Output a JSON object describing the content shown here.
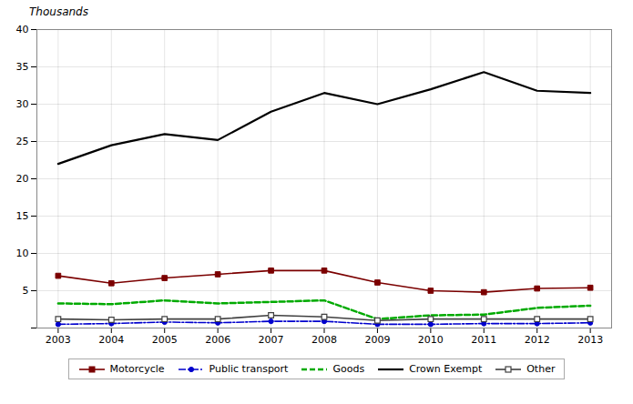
{
  "chart_data": {
    "type": "line",
    "ylabel": "Thousands",
    "x": [
      2003,
      2004,
      2005,
      2006,
      2007,
      2008,
      2009,
      2010,
      2011,
      2012,
      2013
    ],
    "series": [
      {
        "name": "Motorcycle",
        "color": "#7B0000",
        "marker": "square",
        "line_style": "solid",
        "values": [
          7.0,
          6.0,
          6.7,
          7.2,
          7.7,
          7.7,
          6.1,
          5.0,
          4.8,
          5.3,
          5.4
        ]
      },
      {
        "name": "Public transport",
        "color": "#0000CD",
        "marker": "circle",
        "line_style": "dashdot",
        "values": [
          0.5,
          0.6,
          0.8,
          0.7,
          0.9,
          0.9,
          0.5,
          0.5,
          0.6,
          0.6,
          0.7
        ]
      },
      {
        "name": "Goods",
        "color": "#00AA00",
        "marker": "none",
        "line_style": "dashed",
        "values": [
          3.3,
          3.2,
          3.7,
          3.3,
          3.5,
          3.7,
          1.2,
          1.7,
          1.8,
          2.7,
          3.0
        ]
      },
      {
        "name": "Crown Exempt",
        "color": "#000000",
        "marker": "none",
        "line_style": "solid",
        "values": [
          22.0,
          24.5,
          26.0,
          25.2,
          29.0,
          31.5,
          30.0,
          32.0,
          34.3,
          31.8,
          31.5
        ]
      },
      {
        "name": "Other",
        "color": "#404040",
        "marker": "square-open",
        "line_style": "solid",
        "values": [
          1.2,
          1.1,
          1.2,
          1.2,
          1.7,
          1.5,
          1.0,
          1.2,
          1.2,
          1.2,
          1.2
        ]
      }
    ],
    "xlim": [
      2002.6,
      2013.4
    ],
    "xticks": [
      2003,
      2004,
      2005,
      2006,
      2007,
      2008,
      2009,
      2010,
      2011,
      2012,
      2013
    ],
    "ylim": [
      0,
      40
    ],
    "yticks": [
      {
        "value": 0,
        "label": ""
      },
      5,
      10,
      15,
      20,
      25,
      30,
      35,
      40
    ],
    "grid": true,
    "legend": "bottom"
  }
}
